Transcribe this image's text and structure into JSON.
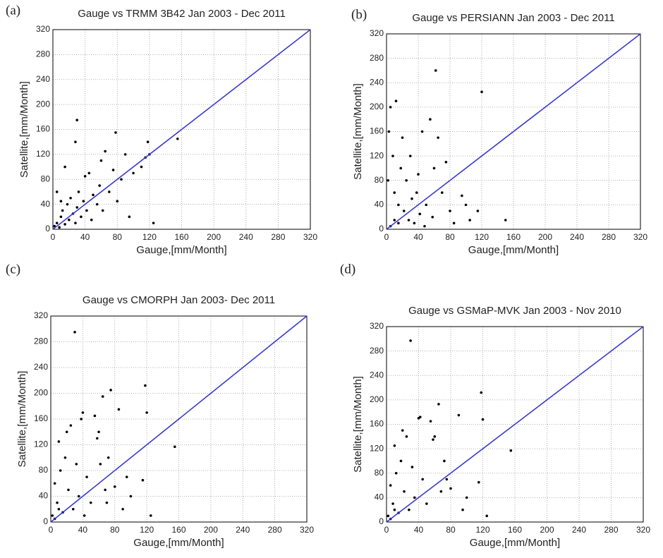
{
  "chart_data": [
    {
      "type": "scatter",
      "panel_label": "(a)",
      "title": "Gauge vs TRMM 3B42 Jan 2003 - Dec 2011",
      "xlabel": "Gauge,[mm/Month]",
      "ylabel": "Satellite,[mm/Month]",
      "xlim": [
        0,
        320
      ],
      "ylim": [
        0,
        320
      ],
      "xticks": [
        0,
        40,
        80,
        120,
        160,
        200,
        240,
        280,
        320
      ],
      "yticks": [
        0,
        40,
        80,
        120,
        160,
        200,
        240,
        280,
        320
      ],
      "grid": true,
      "series": [
        {
          "type": "scatter",
          "color": "#000000",
          "x": [
            2,
            5,
            8,
            10,
            12,
            15,
            18,
            20,
            22,
            25,
            28,
            30,
            32,
            35,
            38,
            40,
            42,
            45,
            48,
            50,
            55,
            58,
            60,
            62,
            65,
            70,
            75,
            78,
            80,
            85,
            90,
            95,
            100,
            110,
            115,
            118,
            120,
            125,
            155,
            30,
            28,
            5,
            10,
            15
          ],
          "values": [
            5,
            10,
            3,
            20,
            30,
            8,
            40,
            15,
            50,
            25,
            10,
            35,
            60,
            20,
            45,
            85,
            30,
            90,
            15,
            55,
            40,
            70,
            110,
            30,
            125,
            60,
            95,
            155,
            45,
            80,
            120,
            20,
            90,
            100,
            115,
            140,
            120,
            10,
            145,
            175,
            140,
            60,
            45,
            100
          ]
        },
        {
          "type": "line",
          "color": "#3a3acc",
          "x": [
            0,
            320
          ],
          "values": [
            0,
            320
          ]
        }
      ]
    },
    {
      "type": "scatter",
      "panel_label": "(b)",
      "title": "Gauge vs PERSIANN Jan 2003 - Dec 2011",
      "xlabel": "Gauge,[mm/Month]",
      "ylabel": "Satellite,[mm/Month]",
      "xlim": [
        0,
        320
      ],
      "ylim": [
        0,
        320
      ],
      "xticks": [
        0,
        40,
        80,
        120,
        160,
        200,
        240,
        280,
        320
      ],
      "yticks": [
        0,
        40,
        80,
        120,
        160,
        200,
        240,
        280,
        320
      ],
      "grid": true,
      "series": [
        {
          "type": "scatter",
          "color": "#000000",
          "x": [
            2,
            3,
            5,
            8,
            10,
            12,
            15,
            18,
            20,
            22,
            25,
            28,
            30,
            32,
            35,
            38,
            40,
            42,
            45,
            48,
            50,
            55,
            58,
            60,
            62,
            65,
            70,
            75,
            80,
            85,
            95,
            100,
            105,
            115,
            120,
            150,
            5,
            10,
            15
          ],
          "values": [
            80,
            160,
            200,
            120,
            60,
            210,
            40,
            100,
            150,
            30,
            80,
            15,
            120,
            50,
            10,
            60,
            90,
            25,
            160,
            5,
            40,
            180,
            20,
            100,
            260,
            150,
            60,
            110,
            30,
            10,
            55,
            40,
            15,
            30,
            225,
            15,
            5,
            15,
            10
          ]
        },
        {
          "type": "line",
          "color": "#3a3acc",
          "x": [
            0,
            320
          ],
          "values": [
            0,
            320
          ]
        }
      ]
    },
    {
      "type": "scatter",
      "panel_label": "(c)",
      "title": "Gauge vs CMORPH Jan 2003- Dec 2011",
      "xlabel": "Gauge,[mm/Month]",
      "ylabel": "Satellite,[mm/Month]",
      "xlim": [
        0,
        320
      ],
      "ylim": [
        0,
        320
      ],
      "xticks": [
        0,
        40,
        80,
        120,
        160,
        200,
        240,
        280,
        320
      ],
      "yticks": [
        0,
        40,
        80,
        120,
        160,
        200,
        240,
        280,
        320
      ],
      "grid": true,
      "series": [
        {
          "type": "scatter",
          "color": "#000000",
          "x": [
            2,
            5,
            8,
            10,
            12,
            15,
            18,
            20,
            22,
            25,
            28,
            30,
            32,
            35,
            38,
            40,
            42,
            45,
            50,
            55,
            58,
            60,
            62,
            65,
            68,
            70,
            72,
            75,
            80,
            85,
            90,
            95,
            100,
            115,
            118,
            120,
            125,
            155,
            5,
            10
          ],
          "values": [
            10,
            60,
            30,
            125,
            80,
            15,
            100,
            140,
            50,
            150,
            20,
            295,
            90,
            40,
            160,
            170,
            10,
            70,
            30,
            165,
            130,
            140,
            90,
            195,
            50,
            30,
            100,
            205,
            55,
            175,
            20,
            70,
            40,
            65,
            212,
            170,
            10,
            117,
            5,
            20
          ]
        },
        {
          "type": "line",
          "color": "#3a3acc",
          "x": [
            0,
            320
          ],
          "values": [
            0,
            320
          ]
        }
      ]
    },
    {
      "type": "scatter",
      "panel_label": "(d)",
      "title": "Gauge vs GSMaP-MVK Jan 2003 - Nov 2010",
      "xlabel": "Gauge,[mm/Month]",
      "ylabel": "Satellite,[mm/Month]",
      "xlim": [
        0,
        320
      ],
      "ylim": [
        0,
        320
      ],
      "xticks": [
        0,
        40,
        80,
        120,
        160,
        200,
        240,
        280,
        320
      ],
      "yticks": [
        0,
        40,
        80,
        120,
        160,
        200,
        240,
        280,
        320
      ],
      "grid": true,
      "series": [
        {
          "type": "scatter",
          "color": "#000000",
          "x": [
            2,
            5,
            8,
            10,
            12,
            15,
            18,
            20,
            22,
            25,
            28,
            30,
            32,
            35,
            40,
            42,
            45,
            50,
            55,
            58,
            60,
            65,
            68,
            72,
            75,
            80,
            90,
            95,
            100,
            115,
            118,
            120,
            125,
            155,
            5,
            10
          ],
          "values": [
            10,
            60,
            30,
            125,
            80,
            15,
            100,
            150,
            50,
            140,
            20,
            297,
            90,
            40,
            170,
            172,
            70,
            30,
            165,
            135,
            140,
            193,
            50,
            100,
            70,
            55,
            175,
            20,
            40,
            65,
            212,
            168,
            10,
            117,
            5,
            20
          ]
        },
        {
          "type": "line",
          "color": "#3a3acc",
          "x": [
            0,
            320
          ],
          "values": [
            0,
            320
          ]
        }
      ]
    }
  ]
}
